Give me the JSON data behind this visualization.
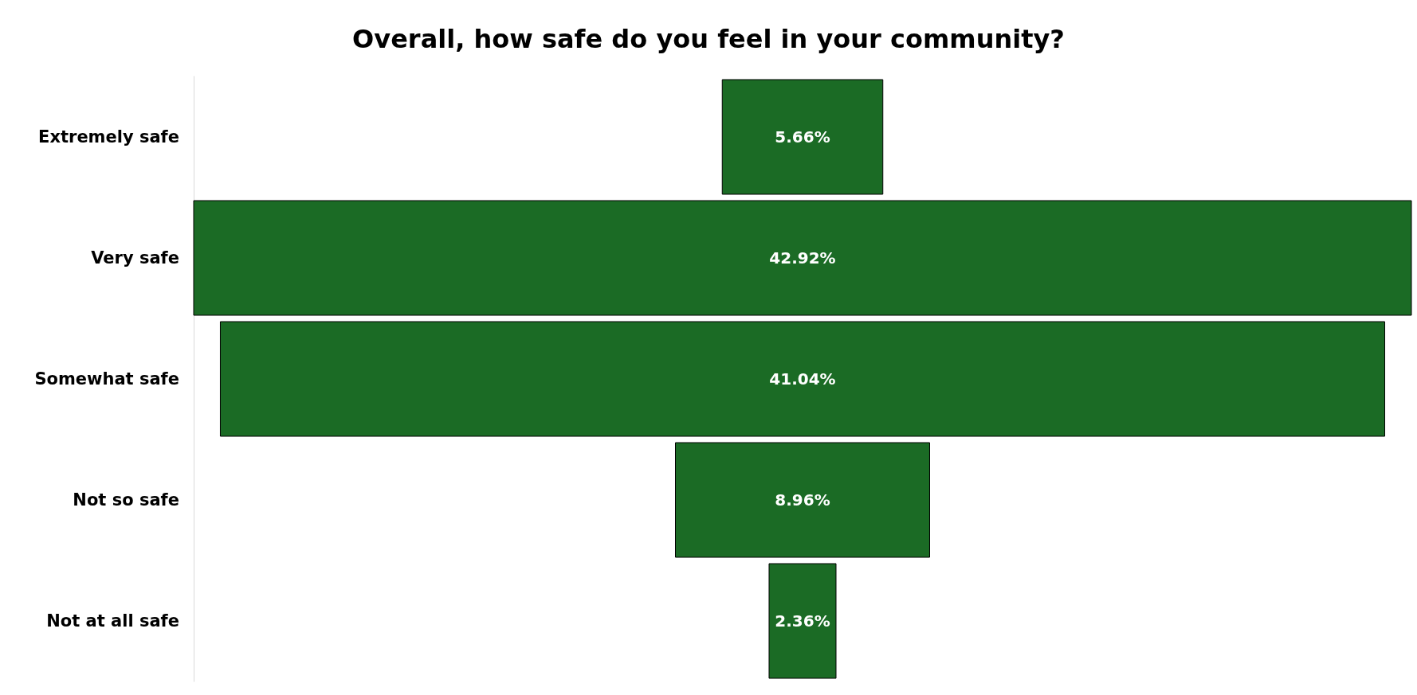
{
  "chart_data": {
    "type": "other",
    "title": "Overall, how safe do you feel in your community?",
    "categories": [
      "Extremely safe",
      "Very safe",
      "Somewhat safe",
      "Not so safe",
      "Not at all safe"
    ],
    "values": [
      5.66,
      42.92,
      41.04,
      8.96,
      2.36
    ],
    "value_labels": [
      "5.66%",
      "42.92%",
      "41.04%",
      "8.96%",
      "2.36%"
    ],
    "color": "#1b6b25"
  }
}
